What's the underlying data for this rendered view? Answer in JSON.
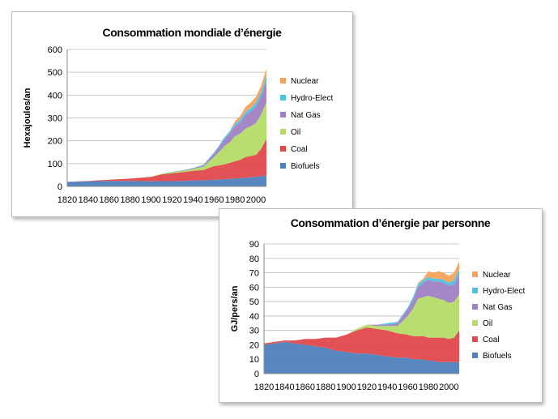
{
  "chart_data": [
    {
      "type": "area",
      "stacked": true,
      "title": "Consommation mondiale d’énergie",
      "xlabel": "",
      "ylabel": "Hexajoules/an",
      "ylim": [
        0,
        600
      ],
      "yticks": [
        0,
        100,
        200,
        300,
        400,
        500,
        600
      ],
      "xticks": [
        1820,
        1840,
        1860,
        1880,
        1900,
        1920,
        1940,
        1960,
        1980,
        2000
      ],
      "xlim": [
        1820,
        2010
      ],
      "legend_position": "right",
      "grid": true,
      "x": [
        1820,
        1840,
        1860,
        1880,
        1900,
        1910,
        1920,
        1930,
        1940,
        1950,
        1960,
        1965,
        1970,
        1975,
        1980,
        1985,
        1990,
        1995,
        2000,
        2005,
        2010
      ],
      "series": [
        {
          "name": "Biofuels",
          "color": "#4f81bd",
          "values": [
            20,
            22,
            24,
            24,
            22,
            23,
            23,
            24,
            26,
            27,
            29,
            30,
            32,
            33,
            35,
            36,
            38,
            40,
            42,
            45,
            48
          ]
        },
        {
          "name": "Coal",
          "color": "#e0484a",
          "values": [
            0,
            2,
            5,
            10,
            20,
            30,
            35,
            38,
            42,
            45,
            60,
            62,
            65,
            70,
            75,
            80,
            90,
            93,
            96,
            120,
            160
          ]
        },
        {
          "name": "Oil",
          "color": "#b5dc68",
          "values": [
            0,
            0,
            0,
            0,
            1,
            2,
            4,
            6,
            8,
            15,
            40,
            60,
            80,
            90,
            110,
            115,
            125,
            130,
            140,
            150,
            160
          ]
        },
        {
          "name": "Nat Gas",
          "color": "#a07fc4",
          "values": [
            0,
            0,
            0,
            0,
            0,
            0,
            1,
            2,
            3,
            5,
            15,
            22,
            30,
            38,
            45,
            50,
            60,
            65,
            72,
            80,
            95
          ]
        },
        {
          "name": "Hydro-Elect",
          "color": "#4bc4e0",
          "values": [
            0,
            0,
            0,
            0,
            0,
            0,
            1,
            1,
            2,
            3,
            5,
            6,
            8,
            9,
            11,
            12,
            14,
            15,
            17,
            19,
            22
          ]
        },
        {
          "name": "Nuclear",
          "color": "#f5a25a",
          "values": [
            0,
            0,
            0,
            0,
            0,
            0,
            0,
            0,
            0,
            0,
            0,
            0,
            1,
            3,
            10,
            15,
            22,
            24,
            26,
            28,
            30
          ]
        }
      ]
    },
    {
      "type": "area",
      "stacked": true,
      "title": "Consommation d’énergie par personne",
      "xlabel": "",
      "ylabel": "GJ/pers/an",
      "ylim": [
        0,
        90
      ],
      "yticks": [
        0,
        10,
        20,
        30,
        40,
        50,
        60,
        70,
        80,
        90
      ],
      "xticks": [
        1820,
        1840,
        1860,
        1880,
        1900,
        1920,
        1940,
        1960,
        1980,
        2000
      ],
      "xlim": [
        1820,
        2010
      ],
      "legend_position": "right",
      "grid": true,
      "x": [
        1820,
        1830,
        1840,
        1850,
        1860,
        1870,
        1880,
        1890,
        1900,
        1910,
        1920,
        1930,
        1940,
        1950,
        1960,
        1965,
        1970,
        1975,
        1980,
        1985,
        1990,
        1995,
        2000,
        2005,
        2010
      ],
      "series": [
        {
          "name": "Biofuels",
          "color": "#4f81bd",
          "values": [
            20,
            21,
            22,
            21,
            20,
            19,
            18,
            16,
            15,
            14,
            14,
            13,
            12,
            11,
            11,
            10,
            10,
            10,
            9,
            9,
            8,
            8,
            8,
            8,
            8
          ]
        },
        {
          "name": "Coal",
          "color": "#e0484a",
          "values": [
            1,
            1,
            1,
            2,
            4,
            5,
            7,
            9,
            12,
            16,
            18,
            18,
            18,
            17,
            16,
            16,
            16,
            16,
            16,
            16,
            17,
            17,
            16,
            17,
            22
          ]
        },
        {
          "name": "Oil",
          "color": "#b5dc68",
          "values": [
            0,
            0,
            0,
            0,
            0,
            0,
            0,
            0,
            0,
            1,
            2,
            2,
            3,
            5,
            13,
            19,
            26,
            27,
            29,
            28,
            27,
            26,
            25,
            25,
            25
          ]
        },
        {
          "name": "Nat Gas",
          "color": "#a07fc4",
          "values": [
            0,
            0,
            0,
            0,
            0,
            0,
            0,
            0,
            0,
            0,
            0,
            1,
            1,
            2,
            5,
            6,
            8,
            10,
            11,
            11,
            12,
            12,
            12,
            12,
            14
          ]
        },
        {
          "name": "Hydro-Elect",
          "color": "#4bc4e0",
          "values": [
            0,
            0,
            0,
            0,
            0,
            0,
            0,
            0,
            0,
            0,
            0,
            0,
            1,
            1,
            1,
            2,
            2,
            2,
            2,
            2,
            2,
            2,
            2,
            3,
            3
          ]
        },
        {
          "name": "Nuclear",
          "color": "#f5a25a",
          "values": [
            0,
            0,
            0,
            0,
            0,
            0,
            0,
            0,
            0,
            0,
            0,
            0,
            0,
            0,
            0,
            0,
            1,
            1,
            4,
            4,
            5,
            5,
            5,
            5,
            6
          ]
        }
      ]
    }
  ]
}
